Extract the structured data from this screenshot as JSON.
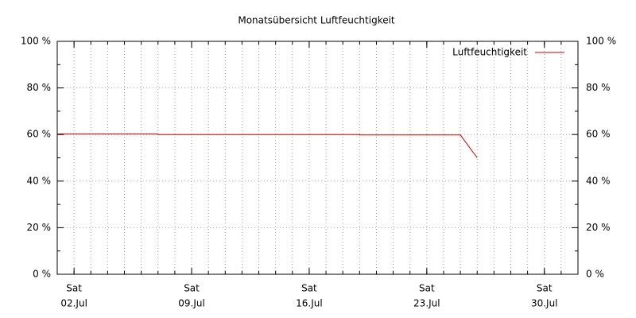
{
  "chart_data": {
    "type": "line",
    "title": "Monatsübersicht Luftfeuchtigkeit",
    "x": [
      1,
      7,
      7,
      19,
      19,
      25,
      26
    ],
    "series": [
      {
        "name": "Luftfeuchtigkeit",
        "color": "#cc0000",
        "values": [
          60.3,
          60.3,
          60.0,
          60.0,
          59.8,
          59.8,
          50
        ]
      }
    ],
    "xlim": [
      1,
      32
    ],
    "xticks": [
      {
        "value": 2,
        "label": "02.Jul",
        "weekday": "Sat"
      },
      {
        "value": 9,
        "label": "09.Jul",
        "weekday": "Sat"
      },
      {
        "value": 16,
        "label": "16.Jul",
        "weekday": "Sat"
      },
      {
        "value": 23,
        "label": "23.Jul",
        "weekday": "Sat"
      },
      {
        "value": 30,
        "label": "30.Jul",
        "weekday": "Sat"
      }
    ],
    "xminorticks": [
      2,
      3,
      4,
      5,
      6,
      7,
      8,
      9,
      10,
      11,
      12,
      13,
      14,
      15,
      16,
      17,
      18,
      19,
      20,
      21,
      22,
      23,
      24,
      25,
      26,
      27,
      28,
      29,
      30,
      31
    ],
    "ylim": [
      0,
      100
    ],
    "yticks": [
      {
        "value": 0,
        "label": "0 %"
      },
      {
        "value": 20,
        "label": "20 %"
      },
      {
        "value": 40,
        "label": "40 %"
      },
      {
        "value": 60,
        "label": "60 %"
      },
      {
        "value": 80,
        "label": "80 %"
      },
      {
        "value": 100,
        "label": "100 %"
      }
    ],
    "yminorticks": [
      10,
      30,
      50,
      70,
      90
    ],
    "grid": true,
    "legend": "top-right",
    "mirror_y_axis": true
  }
}
